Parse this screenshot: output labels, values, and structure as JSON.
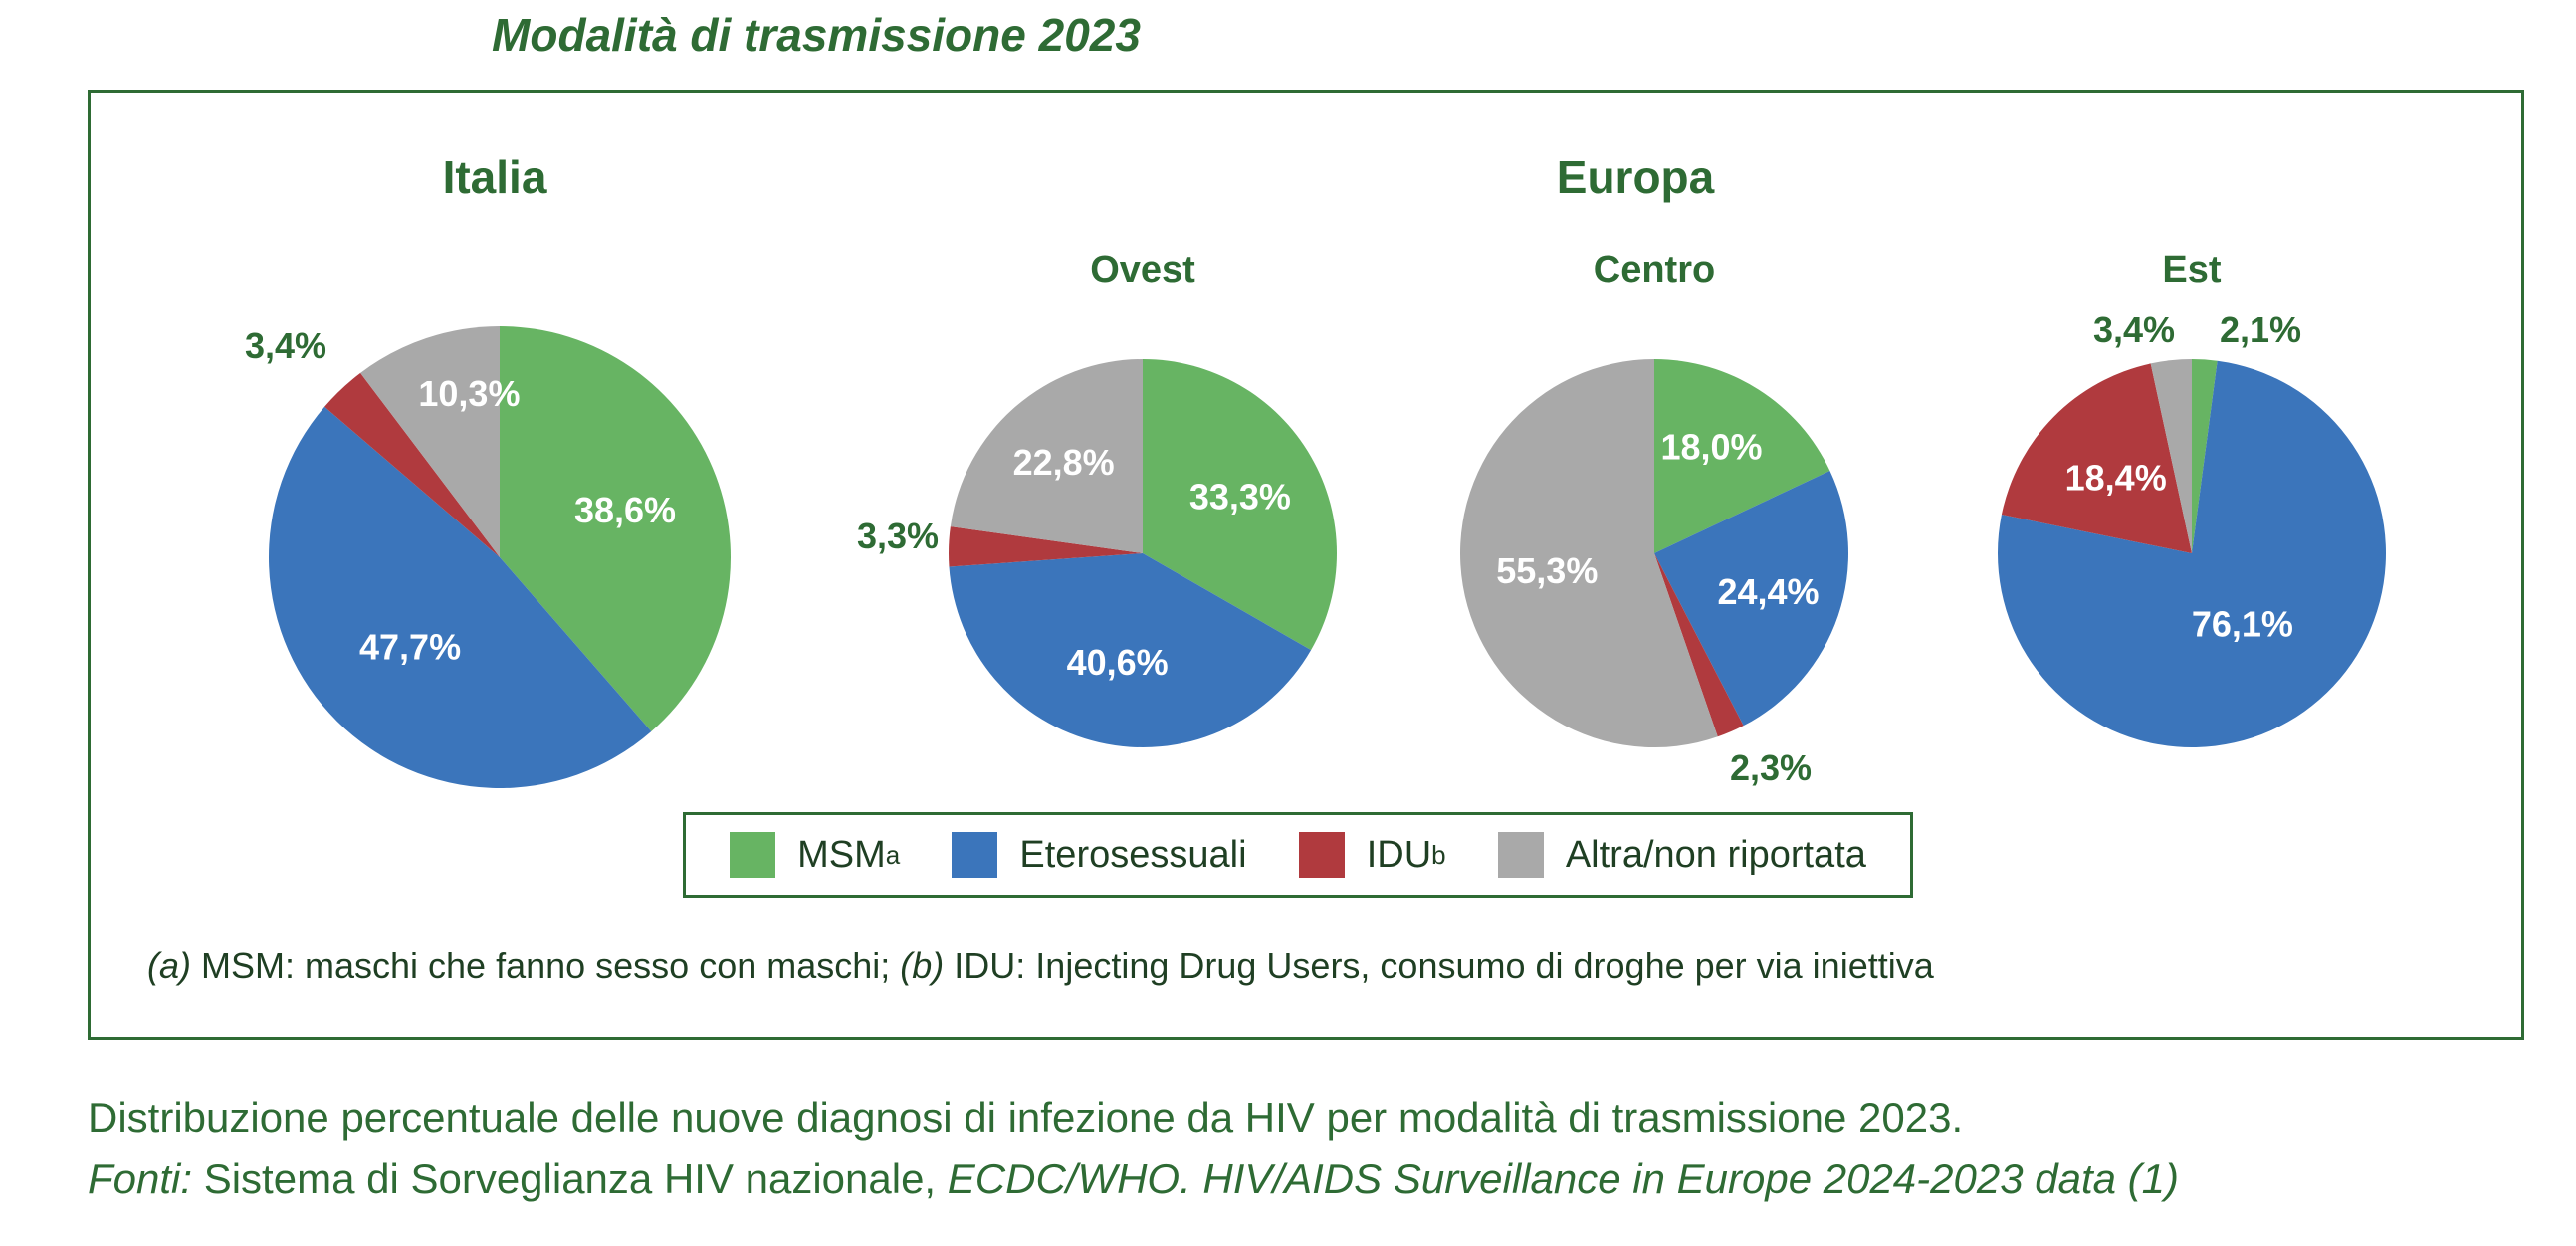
{
  "title": "Modalità di trasmissione 2023",
  "colors": {
    "msm": "#67b463",
    "etero": "#3b75bb",
    "idu": "#b03a3e",
    "altra": "#a9a9a9",
    "accent": "#2e6b34"
  },
  "chart_data": [
    {
      "type": "pie",
      "group": "Italia",
      "title": "",
      "slices": [
        {
          "name": "MSMa",
          "value": 38.6,
          "label": "38,6%"
        },
        {
          "name": "Eterosessuali",
          "value": 47.7,
          "label": "47,7%"
        },
        {
          "name": "IDUb",
          "value": 3.4,
          "label": "3,4%"
        },
        {
          "name": "Altra/non riportata",
          "value": 10.3,
          "label": "10,3%"
        }
      ]
    },
    {
      "type": "pie",
      "group": "Europa",
      "title": "Ovest",
      "slices": [
        {
          "name": "MSMa",
          "value": 33.3,
          "label": "33,3%"
        },
        {
          "name": "Eterosessuali",
          "value": 40.6,
          "label": "40,6%"
        },
        {
          "name": "IDUb",
          "value": 3.3,
          "label": "3,3%"
        },
        {
          "name": "Altra/non riportata",
          "value": 22.8,
          "label": "22,8%"
        }
      ]
    },
    {
      "type": "pie",
      "group": "Europa",
      "title": "Centro",
      "slices": [
        {
          "name": "MSMa",
          "value": 18.0,
          "label": "18,0%"
        },
        {
          "name": "Eterosessuali",
          "value": 24.4,
          "label": "24,4%"
        },
        {
          "name": "IDUb",
          "value": 2.3,
          "label": "2,3%"
        },
        {
          "name": "Altra/non riportata",
          "value": 55.3,
          "label": "55,3%"
        }
      ]
    },
    {
      "type": "pie",
      "group": "Europa",
      "title": "Est",
      "slices": [
        {
          "name": "MSMa",
          "value": 2.1,
          "label": "2,1%"
        },
        {
          "name": "Eterosessuali",
          "value": 76.1,
          "label": "76,1%"
        },
        {
          "name": "IDUb",
          "value": 18.4,
          "label": "18,4%"
        },
        {
          "name": "Altra/non riportata",
          "value": 3.4,
          "label": "3,4%"
        }
      ]
    }
  ],
  "region_titles": {
    "italia": "Italia",
    "europa": "Europa"
  },
  "legend": [
    {
      "label": "MSM",
      "sup": "a",
      "color": "#67b463"
    },
    {
      "label": "Eterosessuali",
      "sup": "",
      "color": "#3b75bb"
    },
    {
      "label": "IDU",
      "sup": "b",
      "color": "#b03a3e"
    },
    {
      "label": "Altra/non riportata",
      "sup": "",
      "color": "#a9a9a9"
    }
  ],
  "footnote": {
    "a_marker": "(a)",
    "a_text": " MSM: maschi che fanno sesso con maschi; ",
    "b_marker": "(b)",
    "b_text": " IDU: Injecting Drug Users, consumo di droghe per via iniettiva"
  },
  "caption": {
    "line1": "Distribuzione percentuale delle nuove diagnosi di infezione da HIV per modalità di trasmissione 2023.",
    "fonti_label": "Fonti:",
    "fonti_text": " Sistema di Sorveglianza HIV nazionale, ",
    "fonti_source": "ECDC/WHO. HIV/AIDS Surveillance in Europe 2024-2023 data (1)"
  }
}
